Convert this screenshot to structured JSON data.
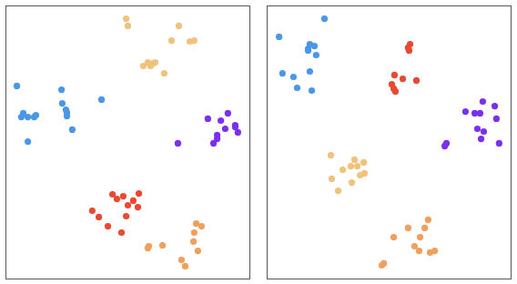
{
  "chart_data": [
    {
      "type": "scatter",
      "xlim": [
        0,
        100
      ],
      "ylim": [
        0,
        100
      ],
      "xticks": [],
      "yticks": [],
      "tick_labels": false,
      "grid": false,
      "marker": "circle",
      "series": [
        {
          "color": "#4a97e6",
          "x": [
            4.5,
            7.1,
            9.0,
            11.6,
            12.3,
            9.0,
            22.8,
            23.1,
            24.6,
            25.0,
            27.2,
            39.2,
            6.3,
            25.0
          ],
          "y": [
            70.7,
            60.7,
            59.3,
            59.3,
            60.0,
            50.3,
            69.3,
            64.3,
            62.0,
            59.7,
            54.7,
            65.7,
            59.3,
            61.0
          ]
        },
        {
          "color": "#f0c27b",
          "x": [
            49.3,
            50.0,
            70.9,
            67.9,
            75.4,
            77.2,
            56.3,
            58.2,
            60.4,
            61.2,
            64.9,
            59.3
          ],
          "y": [
            95.3,
            92.7,
            92.7,
            87.3,
            87.0,
            87.3,
            78.0,
            79.3,
            79.0,
            79.3,
            75.3,
            78.0
          ]
        },
        {
          "color": "#7b30ee",
          "x": [
            91.0,
            82.8,
            88.1,
            94.0,
            95.1,
            89.9,
            86.6,
            85.1,
            70.5,
            86.6,
            94.0
          ],
          "y": [
            60.7,
            58.7,
            58.0,
            56.3,
            53.7,
            55.0,
            51.3,
            49.7,
            49.7,
            52.7,
            55.7
          ]
        },
        {
          "color": "#e8492f",
          "x": [
            43.7,
            48.1,
            54.5,
            52.2,
            50.0,
            54.1,
            35.4,
            38.1,
            41.8,
            47.4,
            49.3,
            45.5
          ],
          "y": [
            31.0,
            30.3,
            31.3,
            28.7,
            27.0,
            26.3,
            25.0,
            22.7,
            19.3,
            17.0,
            23.0,
            29.3
          ]
        },
        {
          "color": "#f0a05c",
          "x": [
            78.0,
            80.2,
            77.2,
            76.9,
            78.7,
            58.6,
            64.2,
            72.0,
            73.5,
            58.2
          ],
          "y": [
            20.3,
            19.3,
            17.0,
            13.7,
            10.3,
            12.0,
            12.3,
            7.0,
            4.7,
            11.3
          ]
        }
      ]
    },
    {
      "type": "scatter",
      "xlim": [
        0,
        100
      ],
      "ylim": [
        0,
        100
      ],
      "xticks": [],
      "yticks": [],
      "tick_labels": false,
      "grid": false,
      "marker": "circle",
      "series": [
        {
          "color": "#4a97e6",
          "x": [
            23.5,
            4.9,
            17.5,
            19.4,
            16.8,
            20.1,
            6.3,
            17.5,
            10.8,
            12.3,
            18.3,
            16.8
          ],
          "y": [
            95.3,
            88.7,
            86.0,
            85.3,
            83.7,
            82.0,
            75.3,
            76.0,
            74.0,
            70.0,
            69.0,
            84.3
          ]
        },
        {
          "color": "#e8492f",
          "x": [
            58.6,
            58.2,
            57.8,
            52.2,
            55.6,
            61.2,
            51.1,
            52.6,
            51.9
          ],
          "y": [
            86.0,
            83.7,
            84.7,
            74.7,
            73.3,
            72.7,
            71.3,
            68.7,
            69.7
          ]
        },
        {
          "color": "#7b30ee",
          "x": [
            88.4,
            93.3,
            81.3,
            85.1,
            87.3,
            86.2,
            94.0,
            88.8,
            95.1,
            73.5,
            72.8,
            87.7
          ],
          "y": [
            65.0,
            63.3,
            61.3,
            60.7,
            60.7,
            55.0,
            58.7,
            54.0,
            49.7,
            49.7,
            48.7,
            51.3
          ]
        },
        {
          "color": "#f0c27b",
          "x": [
            26.1,
            35.8,
            39.6,
            37.0,
            31.0,
            26.5,
            29.1,
            34.7,
            39.9,
            38.1,
            34.3
          ],
          "y": [
            45.3,
            43.7,
            42.7,
            41.3,
            40.0,
            36.7,
            32.3,
            35.3,
            38.7,
            38.0,
            41.3
          ]
        },
        {
          "color": "#f0a05c",
          "x": [
            66.0,
            57.8,
            64.6,
            62.7,
            62.3,
            66.8,
            68.7,
            51.9,
            47.0,
            47.8,
            60.4
          ],
          "y": [
            21.7,
            18.7,
            18.7,
            15.3,
            10.3,
            9.7,
            10.3,
            15.3,
            5.0,
            5.7,
            12.0
          ]
        }
      ]
    }
  ]
}
